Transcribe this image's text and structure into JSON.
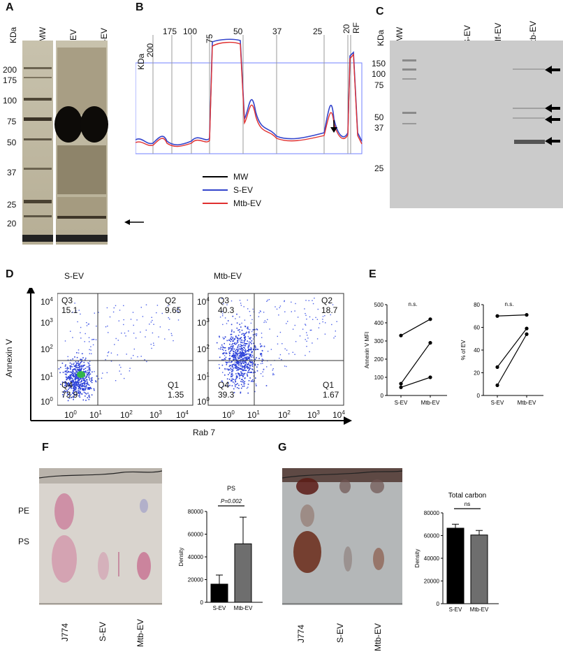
{
  "panels": {
    "A": {
      "letter": "A",
      "ylabel": "KDa",
      "lanes": [
        "MW",
        "S-EV",
        "Mtb-EV"
      ],
      "mw_ticks": [
        "200",
        "175",
        "100",
        "75",
        "50",
        "37",
        "25",
        "20"
      ]
    },
    "B": {
      "letter": "B",
      "top_labels": [
        "KDa",
        "200",
        "175",
        "100",
        "75",
        "50",
        "37",
        "25",
        "20",
        "RF"
      ],
      "legend": [
        "MW",
        "S-EV",
        "Mtb-EV"
      ],
      "colors": {
        "MW": "#000000",
        "S-EV": "#3344cc",
        "Mtb-EV": "#e03030"
      }
    },
    "C": {
      "letter": "C",
      "ylabel": "KDa",
      "lanes": [
        "MW",
        "S-EV",
        "Mf-EV",
        "Mtb-EV"
      ],
      "mw_ticks": [
        "150",
        "100",
        "75",
        "50",
        "37",
        "25"
      ]
    },
    "D": {
      "letter": "D",
      "ylabel": "Annexin V",
      "xlabel": "Rab 7",
      "plots": [
        {
          "title": "S-EV",
          "q3": {
            "name": "Q3",
            "value": "15.1"
          },
          "q2": {
            "name": "Q2",
            "value": "9.65"
          },
          "q4": {
            "name": "Q4",
            "value": "73.9"
          },
          "q1": {
            "name": "Q1",
            "value": "1.35"
          }
        },
        {
          "title": "Mtb-EV",
          "q3": {
            "name": "Q3",
            "value": "40.3"
          },
          "q2": {
            "name": "Q2",
            "value": "18.7"
          },
          "q4": {
            "name": "Q4",
            "value": "39.3"
          },
          "q1": {
            "name": "Q1",
            "value": "1.67"
          }
        }
      ],
      "log_ticks": {
        "base": "10",
        "exps": [
          "0",
          "1",
          "2",
          "3",
          "4"
        ]
      }
    },
    "E": {
      "letter": "E",
      "sig": "n.s."
    },
    "F": {
      "letter": "F",
      "tlc_labels": [
        "PE",
        "PS"
      ],
      "lanes": [
        "J774",
        "S-EV",
        "Mtb-EV"
      ],
      "pvalue": "P=0.002"
    },
    "G": {
      "letter": "G",
      "lanes": [
        "J774",
        "S-EV",
        "Mtb-EV"
      ],
      "sig": "ns"
    }
  },
  "chart_data": [
    {
      "id": "E-left",
      "type": "line",
      "ylabel": "Annexin V MFI",
      "categories": [
        "S-EV",
        "Mtb-EV"
      ],
      "ylim": [
        0,
        500
      ],
      "yticks": [
        0,
        100,
        200,
        300,
        400,
        500
      ],
      "series": [
        {
          "values": [
            330,
            420
          ]
        },
        {
          "values": [
            65,
            290
          ]
        },
        {
          "values": [
            45,
            100
          ]
        }
      ],
      "annotation": "n.s."
    },
    {
      "id": "E-right",
      "type": "line",
      "ylabel": "% of EV",
      "categories": [
        "S-EV",
        "Mtb-EV"
      ],
      "ylim": [
        0,
        80
      ],
      "yticks": [
        0,
        20,
        40,
        60,
        80
      ],
      "series": [
        {
          "values": [
            70,
            71
          ]
        },
        {
          "values": [
            25,
            59
          ]
        },
        {
          "values": [
            9,
            54
          ]
        }
      ],
      "annotation": "n.s."
    },
    {
      "id": "F-bar",
      "type": "bar",
      "title": "PS",
      "ylabel": "Density",
      "categories": [
        "S-EV",
        "Mtb-EV"
      ],
      "values": [
        16000,
        51500
      ],
      "errors": [
        8000,
        23500
      ],
      "ylim": [
        0,
        80000
      ],
      "yticks": [
        0,
        20000,
        40000,
        60000,
        80000
      ],
      "annotation": "P=0.002"
    },
    {
      "id": "G-bar",
      "type": "bar",
      "title": "Total carbon",
      "ylabel": "Density",
      "categories": [
        "S-EV",
        "Mtb-EV"
      ],
      "values": [
        66500,
        60500
      ],
      "errors": [
        3500,
        4000
      ],
      "ylim": [
        0,
        80000
      ],
      "yticks": [
        0,
        20000,
        40000,
        60000,
        80000
      ],
      "annotation": "ns"
    }
  ]
}
